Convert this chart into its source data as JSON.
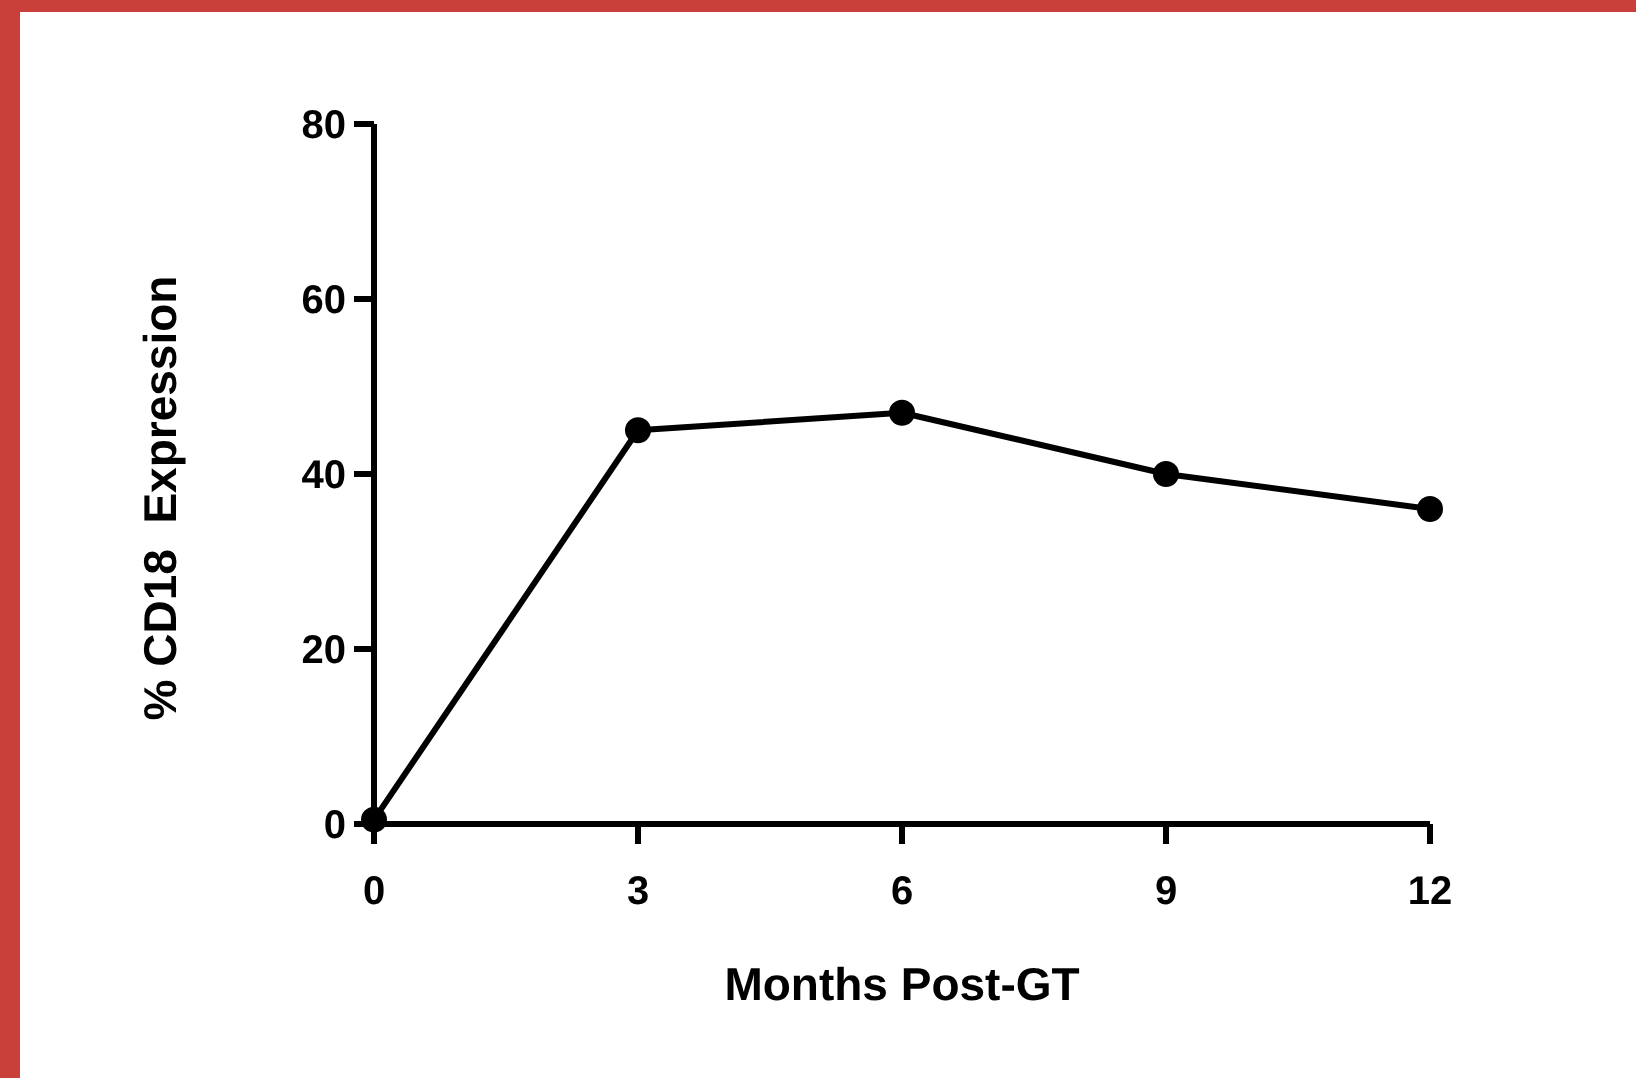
{
  "chart_data": {
    "type": "line",
    "xlabel": "Months Post-GT",
    "ylabel": "% CD18  Expression",
    "x": [
      0,
      3,
      6,
      9,
      12
    ],
    "series": [
      {
        "color": "#000000",
        "values": [
          0.5,
          45,
          47,
          40,
          36
        ]
      }
    ],
    "xlim": [
      0,
      12
    ],
    "xticks": [
      0,
      3,
      6,
      9,
      12
    ],
    "ylim": [
      0,
      80
    ],
    "yticks": [
      0,
      20,
      40,
      60,
      80
    ],
    "grid": false,
    "marker": "circle",
    "line_style": "solid"
  }
}
